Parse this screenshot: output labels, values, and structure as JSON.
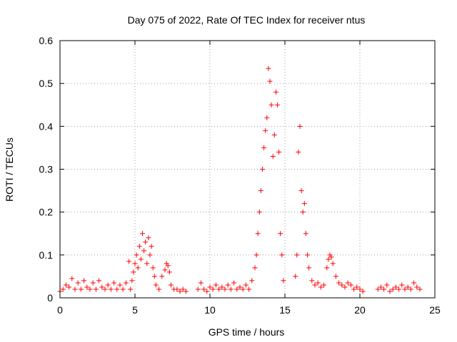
{
  "chart_data": {
    "type": "scatter",
    "title": "Day 075 of 2022, Rate Of TEC Index for receiver ntus",
    "xlabel": "GPS time / hours",
    "ylabel": "ROTI / TECUs",
    "xlim": [
      0,
      25
    ],
    "ylim": [
      0,
      0.6
    ],
    "xticks": [
      0,
      5,
      10,
      15,
      20,
      25
    ],
    "xtick_labels": [
      "0",
      "5",
      "10",
      "15",
      "20",
      "25"
    ],
    "yticks": [
      0,
      0.1,
      0.2,
      0.3,
      0.4,
      0.5,
      0.6
    ],
    "ytick_labels": [
      "0",
      "0.1",
      "0.2",
      "0.3",
      "0.4",
      "0.5",
      "0.6"
    ],
    "grid": true,
    "marker": "+",
    "color": "#ff0000",
    "series": [
      {
        "name": "ROTI",
        "points": [
          [
            0.0,
            0.015
          ],
          [
            0.2,
            0.02
          ],
          [
            0.4,
            0.03
          ],
          [
            0.6,
            0.025
          ],
          [
            0.8,
            0.045
          ],
          [
            1.0,
            0.02
          ],
          [
            1.2,
            0.035
          ],
          [
            1.4,
            0.02
          ],
          [
            1.6,
            0.04
          ],
          [
            1.8,
            0.025
          ],
          [
            2.0,
            0.02
          ],
          [
            2.2,
            0.035
          ],
          [
            2.4,
            0.02
          ],
          [
            2.6,
            0.04
          ],
          [
            2.8,
            0.025
          ],
          [
            3.0,
            0.02
          ],
          [
            3.2,
            0.03
          ],
          [
            3.4,
            0.02
          ],
          [
            3.6,
            0.035
          ],
          [
            3.8,
            0.02
          ],
          [
            4.0,
            0.03
          ],
          [
            4.2,
            0.02
          ],
          [
            4.4,
            0.035
          ],
          [
            4.6,
            0.085
          ],
          [
            4.7,
            0.02
          ],
          [
            4.8,
            0.04
          ],
          [
            4.9,
            0.06
          ],
          [
            5.0,
            0.08
          ],
          [
            5.1,
            0.1
          ],
          [
            5.2,
            0.07
          ],
          [
            5.3,
            0.12
          ],
          [
            5.4,
            0.09
          ],
          [
            5.5,
            0.15
          ],
          [
            5.6,
            0.11
          ],
          [
            5.7,
            0.13
          ],
          [
            5.8,
            0.08
          ],
          [
            5.9,
            0.14
          ],
          [
            6.0,
            0.1
          ],
          [
            6.1,
            0.12
          ],
          [
            6.2,
            0.07
          ],
          [
            6.3,
            0.05
          ],
          [
            6.4,
            0.03
          ],
          [
            6.6,
            0.02
          ],
          [
            6.8,
            0.05
          ],
          [
            7.0,
            0.065
          ],
          [
            7.1,
            0.08
          ],
          [
            7.2,
            0.075
          ],
          [
            7.3,
            0.06
          ],
          [
            7.4,
            0.03
          ],
          [
            7.6,
            0.02
          ],
          [
            7.8,
            0.02
          ],
          [
            8.0,
            0.015
          ],
          [
            8.2,
            0.02
          ],
          [
            8.4,
            0.015
          ],
          [
            9.2,
            0.02
          ],
          [
            9.4,
            0.035
          ],
          [
            9.6,
            0.02
          ],
          [
            9.8,
            0.015
          ],
          [
            10.0,
            0.025
          ],
          [
            10.2,
            0.02
          ],
          [
            10.4,
            0.03
          ],
          [
            10.6,
            0.02
          ],
          [
            10.8,
            0.025
          ],
          [
            11.0,
            0.02
          ],
          [
            11.2,
            0.03
          ],
          [
            11.4,
            0.02
          ],
          [
            11.6,
            0.035
          ],
          [
            11.8,
            0.02
          ],
          [
            12.0,
            0.025
          ],
          [
            12.2,
            0.02
          ],
          [
            12.4,
            0.03
          ],
          [
            12.6,
            0.02
          ],
          [
            12.8,
            0.04
          ],
          [
            13.0,
            0.07
          ],
          [
            13.1,
            0.1
          ],
          [
            13.2,
            0.15
          ],
          [
            13.3,
            0.2
          ],
          [
            13.4,
            0.25
          ],
          [
            13.5,
            0.3
          ],
          [
            13.6,
            0.35
          ],
          [
            13.7,
            0.39
          ],
          [
            13.8,
            0.42
          ],
          [
            13.9,
            0.535
          ],
          [
            14.0,
            0.505
          ],
          [
            14.1,
            0.45
          ],
          [
            14.2,
            0.33
          ],
          [
            14.3,
            0.38
          ],
          [
            14.4,
            0.48
          ],
          [
            14.5,
            0.45
          ],
          [
            14.6,
            0.34
          ],
          [
            14.7,
            0.15
          ],
          [
            14.8,
            0.1
          ],
          [
            14.9,
            0.04
          ],
          [
            15.7,
            0.05
          ],
          [
            15.8,
            0.1
          ],
          [
            15.9,
            0.34
          ],
          [
            16.0,
            0.4
          ],
          [
            16.1,
            0.25
          ],
          [
            16.2,
            0.2
          ],
          [
            16.3,
            0.22
          ],
          [
            16.4,
            0.15
          ],
          [
            16.5,
            0.1
          ],
          [
            16.6,
            0.07
          ],
          [
            16.8,
            0.04
          ],
          [
            17.0,
            0.03
          ],
          [
            17.2,
            0.035
          ],
          [
            17.4,
            0.025
          ],
          [
            17.6,
            0.03
          ],
          [
            17.8,
            0.07
          ],
          [
            17.9,
            0.09
          ],
          [
            18.0,
            0.1
          ],
          [
            18.1,
            0.095
          ],
          [
            18.2,
            0.08
          ],
          [
            18.4,
            0.05
          ],
          [
            18.6,
            0.035
          ],
          [
            18.8,
            0.03
          ],
          [
            19.0,
            0.025
          ],
          [
            19.2,
            0.035
          ],
          [
            19.4,
            0.03
          ],
          [
            19.6,
            0.02
          ],
          [
            19.8,
            0.025
          ],
          [
            20.0,
            0.02
          ],
          [
            20.2,
            0.015
          ],
          [
            21.2,
            0.02
          ],
          [
            21.4,
            0.025
          ],
          [
            21.6,
            0.02
          ],
          [
            21.8,
            0.03
          ],
          [
            22.0,
            0.015
          ],
          [
            22.2,
            0.02
          ],
          [
            22.4,
            0.025
          ],
          [
            22.6,
            0.02
          ],
          [
            22.8,
            0.03
          ],
          [
            23.0,
            0.02
          ],
          [
            23.2,
            0.025
          ],
          [
            23.4,
            0.02
          ],
          [
            23.6,
            0.035
          ],
          [
            23.8,
            0.025
          ],
          [
            24.0,
            0.02
          ]
        ]
      }
    ]
  }
}
